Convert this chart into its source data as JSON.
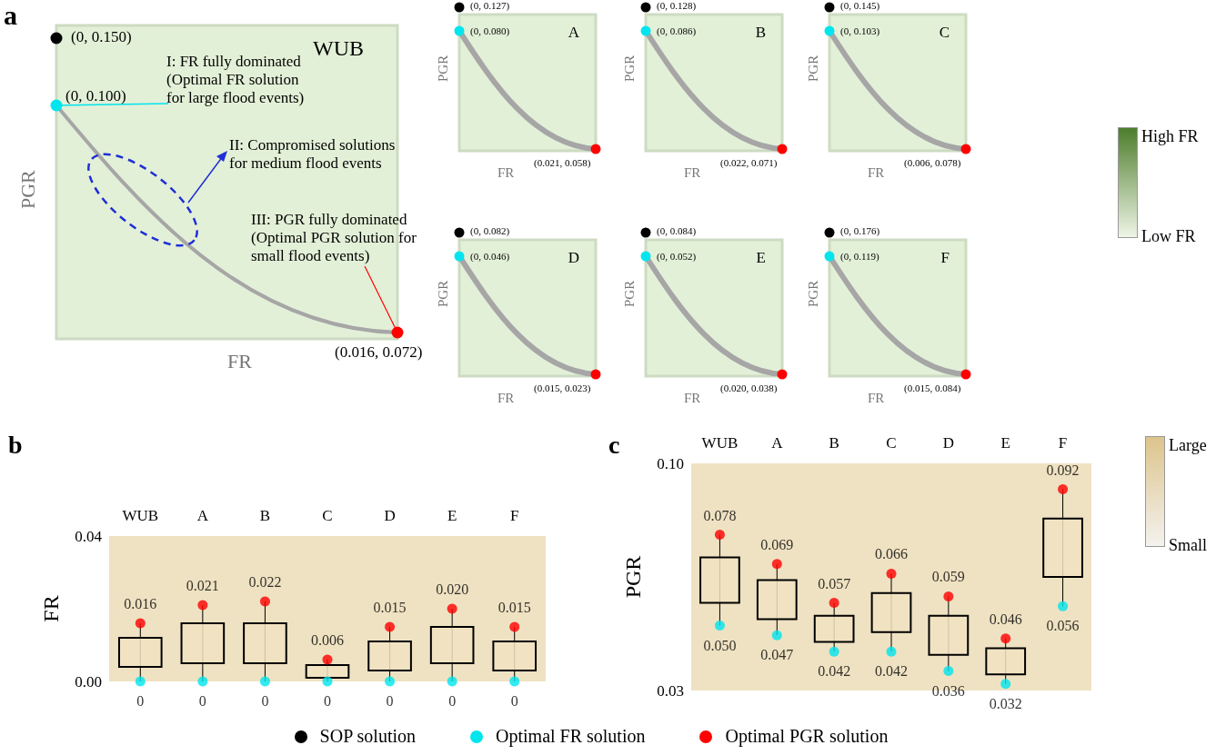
{
  "chart_data": [
    {
      "type": "other",
      "title": "WUB",
      "xlabel": "FR",
      "ylabel": "PGR",
      "colors": [
        "#000000",
        "#00e5ee",
        "#ff0000",
        "#a6a6a6"
      ],
      "annotations": [
        "a",
        "(0, 0.150)",
        "(0, 0.100)",
        "(0.016,  0.072)",
        "I: FR fully dominated (Optimal FR solution for large flood events)",
        "II: Compromised solutions for medium flood events",
        "III: PGR fully dominated (Optimal PGR solution for small flood events)"
      ]
    },
    {
      "type": "other",
      "title": "A",
      "xlabel": "FR",
      "ylabel": "PGR",
      "colors": [
        "#000000",
        "#00e5ee",
        "#ff0000",
        "#a6a6a6"
      ],
      "annotations": [
        "(0,  0.127)",
        "(0,  0.080)",
        "(0.021, 0.058)"
      ]
    },
    {
      "type": "other",
      "title": "B",
      "xlabel": "FR",
      "ylabel": "PGR",
      "colors": [
        "#000000",
        "#00e5ee",
        "#ff0000",
        "#a6a6a6"
      ],
      "annotations": [
        "(0,  0.128)",
        "(0,  0.086)",
        "(0.022, 0.071)"
      ]
    },
    {
      "type": "other",
      "title": "C",
      "xlabel": "FR",
      "ylabel": "PGR",
      "colors": [
        "#000000",
        "#00e5ee",
        "#ff0000",
        "#a6a6a6"
      ],
      "annotations": [
        "(0,  0.145)",
        "(0,  0.103)",
        "(0.006, 0.078)"
      ]
    },
    {
      "type": "other",
      "title": "D",
      "xlabel": "FR",
      "ylabel": "PGR",
      "colors": [
        "#000000",
        "#00e5ee",
        "#ff0000",
        "#a6a6a6"
      ],
      "annotations": [
        "(0,  0.082)",
        "(0,  0.046)",
        "(0.015, 0.023)"
      ]
    },
    {
      "type": "other",
      "title": "E",
      "xlabel": "FR",
      "ylabel": "PGR",
      "colors": [
        "#000000",
        "#00e5ee",
        "#ff0000",
        "#a6a6a6"
      ],
      "annotations": [
        "(0,  0.084)",
        "(0,  0.052)",
        "(0.020, 0.038)"
      ]
    },
    {
      "type": "other",
      "title": "F",
      "xlabel": "FR",
      "ylabel": "PGR",
      "colors": [
        "#000000",
        "#00e5ee",
        "#ff0000",
        "#a6a6a6"
      ],
      "annotations": [
        "(0,  0.176)",
        "(0,  0.119)",
        "(0.015, 0.084)"
      ]
    },
    {
      "type": "box",
      "title": "b",
      "ylabel": "FR",
      "categories": [
        "WUB",
        "A",
        "B",
        "C",
        "D",
        "E",
        "F"
      ],
      "ylim": [
        0,
        0.04
      ],
      "yticks": [
        {
          "value": 0,
          "label": "0.00"
        },
        {
          "value": 0.04,
          "label": "0.04"
        }
      ],
      "series": [
        {
          "type": "box",
          "color": "#000000",
          "boxes": [
            {
              "low": 0,
              "q1": 0.004,
              "q3": 0.012,
              "high": 0.016
            },
            {
              "low": 0,
              "q1": 0.005,
              "q3": 0.016,
              "high": 0.021
            },
            {
              "low": 0,
              "q1": 0.005,
              "q3": 0.016,
              "high": 0.022
            },
            {
              "low": 0,
              "q1": 0.001,
              "q3": 0.0045,
              "high": 0.006
            },
            {
              "low": 0,
              "q1": 0.003,
              "q3": 0.011,
              "high": 0.015
            },
            {
              "low": 0,
              "q1": 0.005,
              "q3": 0.015,
              "high": 0.02
            },
            {
              "low": 0,
              "q1": 0.003,
              "q3": 0.011,
              "high": 0.015
            }
          ]
        },
        {
          "type": "scatter",
          "color": "#00e5ee",
          "x": [
            "WUB",
            "A",
            "B",
            "C",
            "D",
            "E",
            "F"
          ],
          "values": [
            0,
            0,
            0,
            0,
            0,
            0,
            0
          ],
          "value_labels": [
            "0",
            "0",
            "0",
            "0",
            "0",
            "0",
            "0"
          ]
        },
        {
          "type": "scatter",
          "color": "#ff0000",
          "x": [
            "WUB",
            "A",
            "B",
            "C",
            "D",
            "E",
            "F"
          ],
          "values": [
            0.016,
            0.021,
            0.022,
            0.006,
            0.015,
            0.02,
            0.015
          ],
          "value_labels": [
            "0.016",
            "0.021",
            "0.022",
            "0.006",
            "0.015",
            "0.020",
            "0.015"
          ]
        }
      ]
    },
    {
      "type": "box",
      "title": "c",
      "ylabel": "PGR",
      "categories": [
        "WUB",
        "A",
        "B",
        "C",
        "D",
        "E",
        "F"
      ],
      "ylim": [
        0.03,
        0.1
      ],
      "yticks": [
        {
          "value": 0.03,
          "label": "0.03"
        },
        {
          "value": 0.1,
          "label": "0.10"
        }
      ],
      "series": [
        {
          "type": "box",
          "color": "#000000",
          "boxes": [
            {
              "low": 0.05,
              "q1": 0.057,
              "q3": 0.071,
              "high": 0.078
            },
            {
              "low": 0.047,
              "q1": 0.052,
              "q3": 0.064,
              "high": 0.069
            },
            {
              "low": 0.042,
              "q1": 0.045,
              "q3": 0.053,
              "high": 0.057
            },
            {
              "low": 0.042,
              "q1": 0.048,
              "q3": 0.06,
              "high": 0.066
            },
            {
              "low": 0.036,
              "q1": 0.041,
              "q3": 0.053,
              "high": 0.059
            },
            {
              "low": 0.032,
              "q1": 0.035,
              "q3": 0.043,
              "high": 0.046
            },
            {
              "low": 0.056,
              "q1": 0.065,
              "q3": 0.083,
              "high": 0.092
            }
          ]
        },
        {
          "type": "scatter",
          "color": "#00e5ee",
          "x": [
            "WUB",
            "A",
            "B",
            "C",
            "D",
            "E",
            "F"
          ],
          "values": [
            0.05,
            0.047,
            0.042,
            0.042,
            0.036,
            0.032,
            0.056
          ],
          "value_labels": [
            "0.050",
            "0.047",
            "0.042",
            "0.042",
            "0.036",
            "0.032",
            "0.056"
          ]
        },
        {
          "type": "scatter",
          "color": "#ff0000",
          "x": [
            "WUB",
            "A",
            "B",
            "C",
            "D",
            "E",
            "F"
          ],
          "values": [
            0.078,
            0.069,
            0.057,
            0.066,
            0.059,
            0.046,
            0.092
          ],
          "value_labels": [
            "0.078",
            "0.069",
            "0.057",
            "0.066",
            "0.059",
            "0.046",
            "0.092"
          ]
        }
      ]
    },
    {
      "type": "other",
      "annotations": [
        "High FR",
        "Low FR"
      ],
      "colors": [
        "#4d7d2c",
        "#eef5e6"
      ]
    },
    {
      "type": "other",
      "annotations": [
        "Large",
        "Small"
      ],
      "colors": [
        "#dcc48c",
        "#f4f2ee"
      ]
    },
    {
      "type": "other",
      "annotations": [
        "SOP solution",
        "Optimal FR solution",
        "Optimal PGR solution"
      ],
      "colors": [
        "#000000",
        "#00e5ee",
        "#ff0000"
      ]
    }
  ]
}
